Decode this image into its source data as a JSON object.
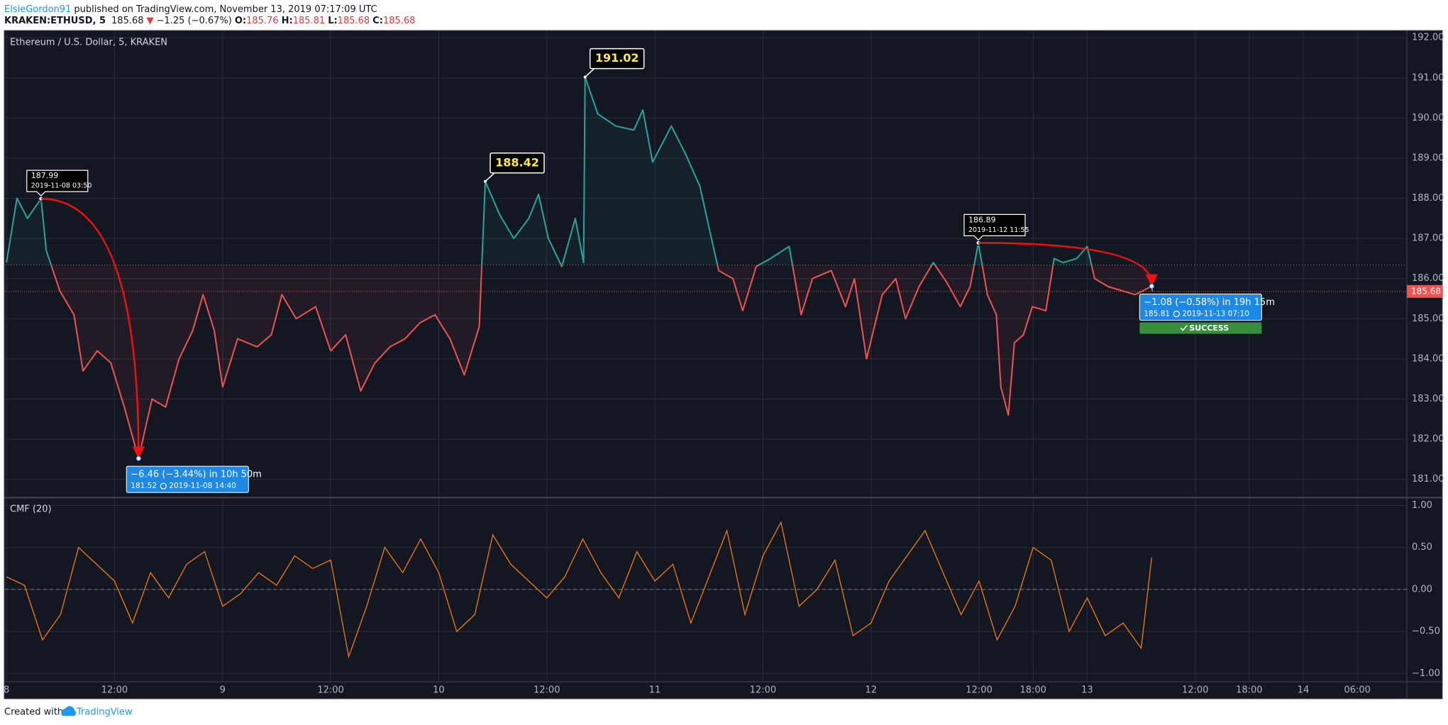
{
  "header": {
    "author": "ElsieGordon91",
    "published": "published on TradingView.com, November 13, 2019 07:17:09 UTC",
    "symbol": "KRAKEN:ETHUSD, 5",
    "last": "185.68",
    "direction": "▼",
    "change": "−1.25 (−0.67%)",
    "ohlc": [
      [
        "O:",
        "185.76"
      ],
      [
        "H:",
        "185.81"
      ],
      [
        "L:",
        "185.68"
      ],
      [
        "C:",
        "185.68"
      ]
    ]
  },
  "footer": {
    "text": "Created with",
    "brand": "TradingView"
  },
  "chart_data": [
    {
      "type": "line",
      "title": "Ethereum / U.S. Dollar, 5, KRAKEN",
      "x": [
        "2019-11-08 00:00",
        "2019-11-08 01:10",
        "2019-11-08 02:20",
        "2019-11-08 03:50",
        "2019-11-08 04:25",
        "2019-11-08 05:55",
        "2019-11-08 07:30",
        "2019-11-08 08:30",
        "2019-11-08 10:05",
        "2019-11-08 11:35",
        "2019-11-08 13:05",
        "2019-11-08 14:40",
        "2019-11-08 16:10",
        "2019-11-08 17:40",
        "2019-11-08 19:10",
        "2019-11-08 20:40",
        "2019-11-08 21:50",
        "2019-11-08 23:05",
        "2019-11-09 00:00",
        "2019-11-09 01:40",
        "2019-11-09 03:50",
        "2019-11-09 05:25",
        "2019-11-09 06:35",
        "2019-11-09 08:10",
        "2019-11-09 10:20",
        "2019-11-09 12:00",
        "2019-11-09 13:40",
        "2019-11-09 15:20",
        "2019-11-09 16:55",
        "2019-11-09 18:35",
        "2019-11-09 20:15",
        "2019-11-09 21:55",
        "2019-11-09 23:35",
        "2019-11-10 01:15",
        "2019-11-10 02:50",
        "2019-11-10 04:30",
        "2019-11-10 05:10",
        "2019-11-10 06:45",
        "2019-11-10 08:20",
        "2019-11-10 10:00",
        "2019-11-10 11:05",
        "2019-11-10 12:10",
        "2019-11-10 13:40",
        "2019-11-10 15:10",
        "2019-11-10 16:05",
        "2019-11-10 16:15",
        "2019-11-10 17:40",
        "2019-11-10 19:40",
        "2019-11-10 21:40",
        "2019-11-10 22:40",
        "2019-11-10 23:45",
        "2019-11-11 01:50",
        "2019-11-11 03:25",
        "2019-11-11 05:00",
        "2019-11-11 06:05",
        "2019-11-11 07:05",
        "2019-11-11 08:40",
        "2019-11-11 09:45",
        "2019-11-11 11:15",
        "2019-11-11 12:50",
        "2019-11-11 14:55",
        "2019-11-11 16:15",
        "2019-11-11 17:30",
        "2019-11-11 19:35",
        "2019-11-11 21:10",
        "2019-11-11 22:10",
        "2019-11-11 23:30",
        "2019-11-12 01:15",
        "2019-11-12 02:45",
        "2019-11-12 03:50",
        "2019-11-12 05:20",
        "2019-11-12 06:55",
        "2019-11-12 08:25",
        "2019-11-12 09:55",
        "2019-11-12 11:00",
        "2019-11-12 11:55",
        "2019-11-12 12:55",
        "2019-11-12 13:55",
        "2019-11-12 14:25",
        "2019-11-12 15:15",
        "2019-11-12 15:55",
        "2019-11-12 16:55",
        "2019-11-12 17:55",
        "2019-11-12 19:25",
        "2019-11-12 20:20",
        "2019-11-12 21:20",
        "2019-11-12 22:50",
        "2019-11-13 00:00",
        "2019-11-13 00:50",
        "2019-11-13 02:20",
        "2019-11-13 03:50",
        "2019-11-13 05:20",
        "2019-11-13 07:10",
        "2019-11-13 07:15"
      ],
      "values": [
        186.4,
        188.0,
        187.5,
        187.99,
        186.7,
        185.7,
        185.1,
        183.7,
        184.2,
        183.9,
        182.8,
        181.52,
        183.0,
        182.8,
        184.0,
        184.7,
        185.6,
        184.7,
        183.3,
        184.5,
        184.3,
        184.6,
        185.6,
        185.0,
        185.3,
        184.2,
        184.6,
        183.2,
        183.9,
        184.3,
        184.5,
        184.9,
        185.1,
        184.5,
        183.6,
        184.8,
        188.42,
        187.6,
        187.0,
        187.5,
        188.1,
        187.0,
        186.3,
        187.5,
        186.4,
        191.02,
        190.1,
        189.8,
        189.7,
        190.2,
        188.9,
        189.8,
        189.1,
        188.3,
        187.2,
        186.2,
        186.0,
        185.2,
        186.3,
        186.5,
        186.8,
        185.1,
        186.0,
        186.2,
        185.3,
        186.0,
        184.0,
        185.6,
        186.0,
        185.0,
        185.8,
        186.4,
        185.9,
        185.3,
        185.8,
        186.89,
        185.6,
        185.1,
        183.3,
        182.6,
        184.4,
        184.6,
        185.3,
        185.2,
        186.5,
        186.4,
        186.5,
        186.8,
        186.0,
        185.8,
        185.7,
        185.6,
        185.81,
        185.68
      ],
      "baseline": 186.34,
      "color_above": "#26a69a",
      "color_below": "#ef5350",
      "last_price": {
        "value": 185.68,
        "label": "185.68",
        "color": "#ef5350"
      },
      "xlim": [
        "2019-11-07 23:50",
        "2019-11-14 11:30"
      ],
      "xticks": [
        {
          "value": "2019-11-08 00:00",
          "label": "8"
        },
        {
          "value": "2019-11-08 12:00",
          "label": "12:00"
        },
        {
          "value": "2019-11-09 00:00",
          "label": "9"
        },
        {
          "value": "2019-11-09 12:00",
          "label": "12:00"
        },
        {
          "value": "2019-11-10 00:00",
          "label": "10"
        },
        {
          "value": "2019-11-10 12:00",
          "label": "12:00"
        },
        {
          "value": "2019-11-11 00:00",
          "label": "11"
        },
        {
          "value": "2019-11-11 12:00",
          "label": "12:00"
        },
        {
          "value": "2019-11-12 00:00",
          "label": "12"
        },
        {
          "value": "2019-11-12 12:00",
          "label": "12:00"
        },
        {
          "value": "2019-11-12 18:00",
          "label": "18:00"
        },
        {
          "value": "2019-11-13 00:00",
          "label": "13"
        },
        {
          "value": "2019-11-13 12:00",
          "label": "12:00"
        },
        {
          "value": "2019-11-13 18:00",
          "label": "18:00"
        },
        {
          "value": "2019-11-14 00:00",
          "label": "14"
        },
        {
          "value": "2019-11-14 06:00",
          "label": "06:00"
        }
      ],
      "ylim": [
        180.57,
        192.18
      ],
      "yticks": [
        {
          "value": 181,
          "label": "181.00"
        },
        {
          "value": 182,
          "label": "182.00"
        },
        {
          "value": 183,
          "label": "183.00"
        },
        {
          "value": 184,
          "label": "184.00"
        },
        {
          "value": 185,
          "label": "185.00"
        },
        {
          "value": 186,
          "label": "186.00"
        },
        {
          "value": 187,
          "label": "187.00"
        },
        {
          "value": 188,
          "label": "188.00"
        },
        {
          "value": 189,
          "label": "189.00"
        },
        {
          "value": 190,
          "label": "190.00"
        },
        {
          "value": 191,
          "label": "191.00"
        },
        {
          "value": 192,
          "label": "192.00"
        }
      ],
      "grid": true,
      "annotations": [
        {
          "kind": "callout",
          "time": "2019-11-08 03:50",
          "price": 187.99
        },
        {
          "kind": "projection",
          "time": "2019-11-08 14:40",
          "price": 181.52,
          "label": "−6.46 (−3.44%) in 10h 50m"
        },
        {
          "kind": "flag",
          "time": "2019-11-10 05:10",
          "price": 188.42
        },
        {
          "kind": "flag",
          "time": "2019-11-10 16:15",
          "price": 191.02
        },
        {
          "kind": "callout",
          "time": "2019-11-12 11:55",
          "price": 186.89
        },
        {
          "kind": "projection",
          "time": "2019-11-13 07:10",
          "price": 185.81,
          "label": "−1.08 (−0.58%) in 19h 15m",
          "status": "SUCCESS"
        }
      ]
    },
    {
      "type": "line",
      "title": "CMF (20)",
      "color": "#f57c00",
      "x": [
        "2019-11-08 00:00",
        "2019-11-08 02:00",
        "2019-11-08 04:00",
        "2019-11-08 06:00",
        "2019-11-08 08:00",
        "2019-11-08 10:00",
        "2019-11-08 12:00",
        "2019-11-08 14:00",
        "2019-11-08 16:00",
        "2019-11-08 18:00",
        "2019-11-08 20:00",
        "2019-11-08 22:00",
        "2019-11-09 00:00",
        "2019-11-09 02:00",
        "2019-11-09 04:00",
        "2019-11-09 06:00",
        "2019-11-09 08:00",
        "2019-11-09 10:00",
        "2019-11-09 12:00",
        "2019-11-09 14:00",
        "2019-11-09 16:00",
        "2019-11-09 18:00",
        "2019-11-09 20:00",
        "2019-11-09 22:00",
        "2019-11-10 00:00",
        "2019-11-10 02:00",
        "2019-11-10 04:00",
        "2019-11-10 06:00",
        "2019-11-10 08:00",
        "2019-11-10 10:00",
        "2019-11-10 12:00",
        "2019-11-10 14:00",
        "2019-11-10 16:00",
        "2019-11-10 18:00",
        "2019-11-10 20:00",
        "2019-11-10 22:00",
        "2019-11-11 00:00",
        "2019-11-11 02:00",
        "2019-11-11 04:00",
        "2019-11-11 06:00",
        "2019-11-11 08:00",
        "2019-11-11 10:00",
        "2019-11-11 12:00",
        "2019-11-11 14:00",
        "2019-11-11 16:00",
        "2019-11-11 18:00",
        "2019-11-11 20:00",
        "2019-11-11 22:00",
        "2019-11-12 00:00",
        "2019-11-12 02:00",
        "2019-11-12 04:00",
        "2019-11-12 06:00",
        "2019-11-12 08:00",
        "2019-11-12 10:00",
        "2019-11-12 12:00",
        "2019-11-12 14:00",
        "2019-11-12 16:00",
        "2019-11-12 18:00",
        "2019-11-12 20:00",
        "2019-11-12 22:00",
        "2019-11-13 00:00",
        "2019-11-13 02:00",
        "2019-11-13 04:00",
        "2019-11-13 06:00",
        "2019-11-13 07:10"
      ],
      "values": [
        0.15,
        0.05,
        -0.6,
        -0.3,
        0.5,
        0.3,
        0.1,
        -0.4,
        0.2,
        -0.1,
        0.3,
        0.45,
        -0.2,
        -0.05,
        0.2,
        0.05,
        0.4,
        0.25,
        0.35,
        -0.8,
        -0.2,
        0.5,
        0.2,
        0.6,
        0.2,
        -0.5,
        -0.3,
        0.65,
        0.3,
        0.1,
        -0.1,
        0.15,
        0.6,
        0.2,
        -0.1,
        0.45,
        0.1,
        0.3,
        -0.4,
        0.15,
        0.7,
        -0.3,
        0.4,
        0.8,
        -0.2,
        0.0,
        0.35,
        -0.55,
        -0.4,
        0.1,
        0.4,
        0.7,
        0.2,
        -0.3,
        0.1,
        -0.6,
        -0.2,
        0.5,
        0.35,
        -0.5,
        -0.1,
        -0.55,
        -0.4,
        -0.7,
        0.38
      ],
      "zero_line": 0,
      "ylim": [
        -1.09,
        1.08
      ],
      "yticks": [
        {
          "value": 1,
          "label": "1.00"
        },
        {
          "value": 0.5,
          "label": "0.50"
        },
        {
          "value": 0,
          "label": "0.00"
        },
        {
          "value": -0.5,
          "label": "−0.50"
        },
        {
          "value": -1,
          "label": "−1.00"
        }
      ],
      "grid": true
    }
  ]
}
